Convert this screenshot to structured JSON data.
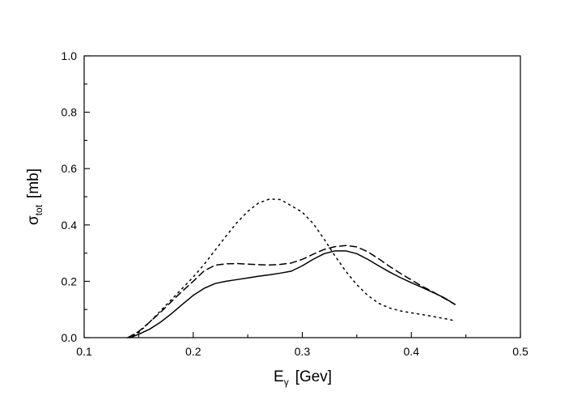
{
  "chart_data": {
    "type": "line",
    "title": "",
    "xlabel": {
      "main": "E",
      "sub": "γ",
      "unit": "[Gev]"
    },
    "ylabel": {
      "main": "σ",
      "sub": "tot",
      "unit": "[mb]"
    },
    "xlim": [
      0.1,
      0.5
    ],
    "ylim": [
      0.0,
      1.0
    ],
    "x_ticks": [
      "0.1",
      "0.2",
      "0.3",
      "0.4",
      "0.5"
    ],
    "y_ticks": [
      "0.0",
      "0.2",
      "0.4",
      "0.6",
      "0.8",
      "1.0"
    ],
    "grid": false,
    "legend": "none",
    "series": [
      {
        "style": "solid",
        "points": [
          [
            0.142,
            0.0
          ],
          [
            0.15,
            0.012
          ],
          [
            0.16,
            0.03
          ],
          [
            0.17,
            0.055
          ],
          [
            0.18,
            0.085
          ],
          [
            0.19,
            0.118
          ],
          [
            0.2,
            0.15
          ],
          [
            0.21,
            0.175
          ],
          [
            0.22,
            0.192
          ],
          [
            0.23,
            0.2
          ],
          [
            0.24,
            0.206
          ],
          [
            0.25,
            0.212
          ],
          [
            0.26,
            0.218
          ],
          [
            0.27,
            0.223
          ],
          [
            0.28,
            0.229
          ],
          [
            0.29,
            0.236
          ],
          [
            0.3,
            0.255
          ],
          [
            0.31,
            0.278
          ],
          [
            0.32,
            0.298
          ],
          [
            0.33,
            0.308
          ],
          [
            0.34,
            0.308
          ],
          [
            0.35,
            0.298
          ],
          [
            0.36,
            0.278
          ],
          [
            0.37,
            0.255
          ],
          [
            0.38,
            0.233
          ],
          [
            0.39,
            0.213
          ],
          [
            0.4,
            0.195
          ],
          [
            0.41,
            0.178
          ],
          [
            0.42,
            0.16
          ],
          [
            0.43,
            0.142
          ],
          [
            0.44,
            0.118
          ]
        ]
      },
      {
        "style": "dashed",
        "points": [
          [
            0.14,
            0.0
          ],
          [
            0.15,
            0.022
          ],
          [
            0.16,
            0.055
          ],
          [
            0.17,
            0.09
          ],
          [
            0.18,
            0.128
          ],
          [
            0.19,
            0.165
          ],
          [
            0.2,
            0.2
          ],
          [
            0.21,
            0.237
          ],
          [
            0.22,
            0.257
          ],
          [
            0.23,
            0.262
          ],
          [
            0.24,
            0.263
          ],
          [
            0.25,
            0.261
          ],
          [
            0.26,
            0.259
          ],
          [
            0.27,
            0.258
          ],
          [
            0.28,
            0.26
          ],
          [
            0.29,
            0.265
          ],
          [
            0.3,
            0.278
          ],
          [
            0.31,
            0.296
          ],
          [
            0.32,
            0.313
          ],
          [
            0.33,
            0.323
          ],
          [
            0.34,
            0.327
          ],
          [
            0.35,
            0.322
          ],
          [
            0.36,
            0.305
          ],
          [
            0.37,
            0.28
          ],
          [
            0.38,
            0.253
          ],
          [
            0.39,
            0.228
          ],
          [
            0.4,
            0.205
          ],
          [
            0.41,
            0.182
          ],
          [
            0.42,
            0.162
          ],
          [
            0.43,
            0.14
          ],
          [
            0.44,
            0.118
          ]
        ]
      },
      {
        "style": "dotted",
        "points": [
          [
            0.14,
            0.0
          ],
          [
            0.15,
            0.018
          ],
          [
            0.16,
            0.055
          ],
          [
            0.17,
            0.095
          ],
          [
            0.18,
            0.135
          ],
          [
            0.19,
            0.175
          ],
          [
            0.2,
            0.215
          ],
          [
            0.21,
            0.26
          ],
          [
            0.22,
            0.31
          ],
          [
            0.23,
            0.36
          ],
          [
            0.24,
            0.408
          ],
          [
            0.25,
            0.448
          ],
          [
            0.26,
            0.478
          ],
          [
            0.27,
            0.492
          ],
          [
            0.28,
            0.49
          ],
          [
            0.29,
            0.468
          ],
          [
            0.3,
            0.445
          ],
          [
            0.31,
            0.405
          ],
          [
            0.32,
            0.35
          ],
          [
            0.33,
            0.29
          ],
          [
            0.34,
            0.235
          ],
          [
            0.35,
            0.188
          ],
          [
            0.36,
            0.15
          ],
          [
            0.37,
            0.122
          ],
          [
            0.38,
            0.105
          ],
          [
            0.39,
            0.095
          ],
          [
            0.4,
            0.088
          ],
          [
            0.41,
            0.082
          ],
          [
            0.42,
            0.075
          ],
          [
            0.43,
            0.068
          ],
          [
            0.44,
            0.06
          ]
        ]
      }
    ]
  }
}
